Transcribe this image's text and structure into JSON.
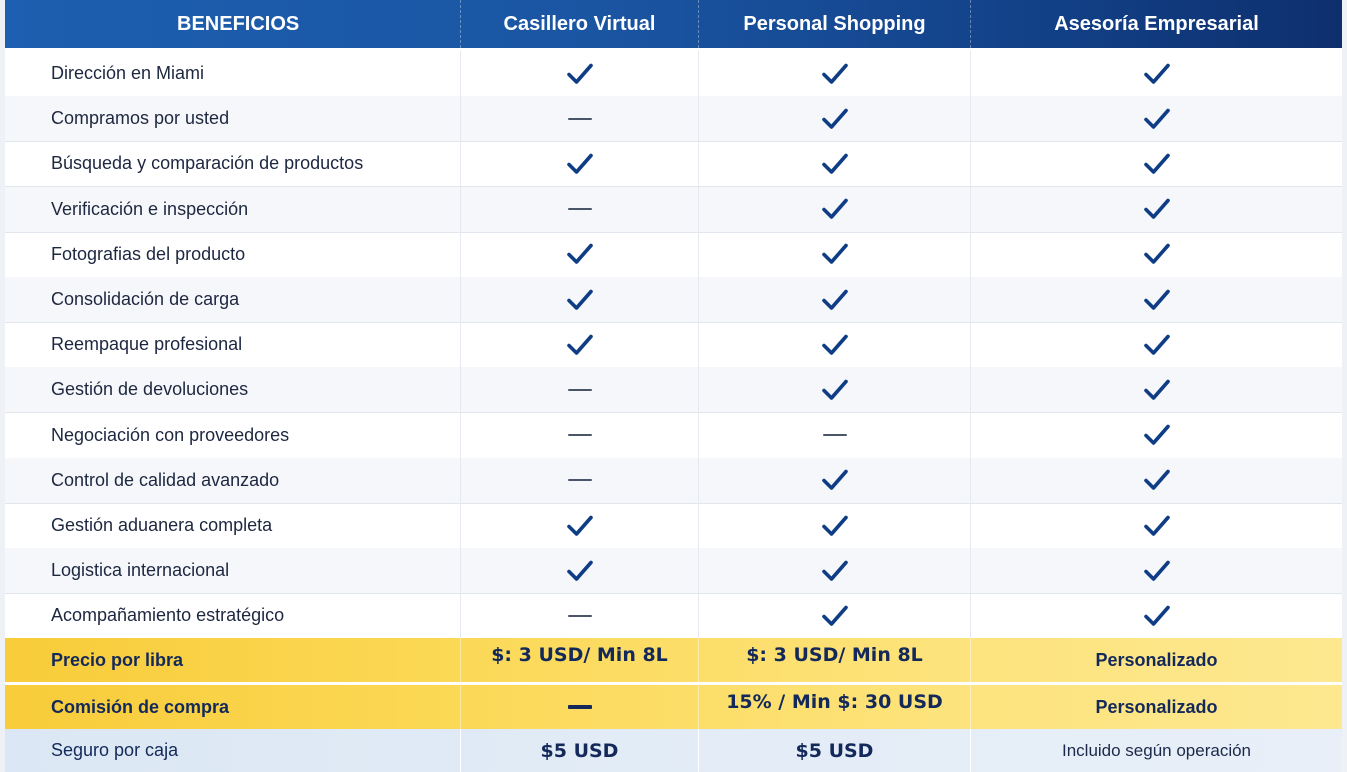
{
  "header": {
    "col0": "BENEFICIOS",
    "col1": "Casillero Virtual",
    "col2": "Personal Shopping",
    "col3": "Asesoría Empresarial"
  },
  "benefits": [
    {
      "label": "Dirección en Miami",
      "values": [
        "check",
        "check",
        "check"
      ]
    },
    {
      "label": "Compramos por usted",
      "values": [
        "dash",
        "check",
        "check"
      ]
    },
    {
      "label": "Búsqueda y comparación de productos",
      "values": [
        "check",
        "check",
        "check"
      ]
    },
    {
      "label": "Verificación e inspección",
      "values": [
        "dash",
        "check",
        "check"
      ]
    },
    {
      "label": "Fotografias del producto",
      "values": [
        "check",
        "check",
        "check"
      ]
    },
    {
      "label": "Consolidación de carga",
      "values": [
        "check",
        "check",
        "check"
      ]
    },
    {
      "label": "Reempaque profesional",
      "values": [
        "check",
        "check",
        "check"
      ]
    },
    {
      "label": "Gestión de devoluciones",
      "values": [
        "dash",
        "check",
        "check"
      ]
    },
    {
      "label": "Negociación con proveedores",
      "values": [
        "dash",
        "dash",
        "check"
      ]
    },
    {
      "label": "Control de calidad avanzado",
      "values": [
        "dash",
        "check",
        "check"
      ]
    },
    {
      "label": "Gestión aduanera completa",
      "values": [
        "check",
        "check",
        "check"
      ]
    },
    {
      "label": "Logistica internacional",
      "values": [
        "check",
        "check",
        "check"
      ]
    },
    {
      "label": "Acompañamiento estratégico",
      "values": [
        "dash",
        "check",
        "check"
      ]
    }
  ],
  "pricing": {
    "price_per_lb": {
      "label": "Precio por libra",
      "col1": "$: 3 USD/ Min 8L",
      "col2": "$: 3 USD/ Min 8L",
      "col3": "Personalizado"
    },
    "purchase_fee": {
      "label": "Comisión de compra",
      "col1": "dash",
      "col2": "15% / Min $: 30 USD",
      "col3": "Personalizado"
    },
    "insurance": {
      "label": "Seguro por caja",
      "col1": "$5 USD",
      "col2": "$5 USD",
      "col3": "Incluido según operación"
    }
  },
  "icons": {
    "check": "check-icon",
    "dash": "dash-icon"
  },
  "colors": {
    "header_blue": "#1a55a2",
    "check_blue": "#0f3d85",
    "highlight_yellow": "#fbd752",
    "insurance_row": "#e1eaf5"
  }
}
